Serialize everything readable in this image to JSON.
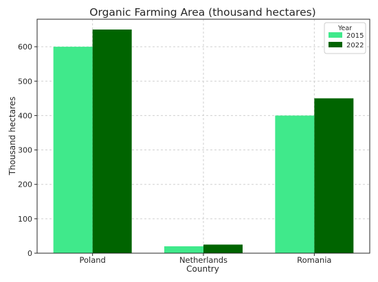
{
  "chart_data": {
    "type": "bar",
    "title": "Organic Farming Area (thousand hectares)",
    "xlabel": "Country",
    "ylabel": "Thousand hectares",
    "categories": [
      "Poland",
      "Netherlands",
      "Romania"
    ],
    "series": [
      {
        "name": "2015",
        "values": [
          600,
          20,
          400
        ],
        "color": "#40e98b"
      },
      {
        "name": "2022",
        "values": [
          650,
          25,
          450
        ],
        "color": "#006400"
      }
    ],
    "ylim": [
      0,
      680
    ],
    "yticks": [
      0,
      100,
      200,
      300,
      400,
      500,
      600
    ],
    "grid": true,
    "legend": {
      "title": "Year",
      "placement": "top-right"
    }
  }
}
